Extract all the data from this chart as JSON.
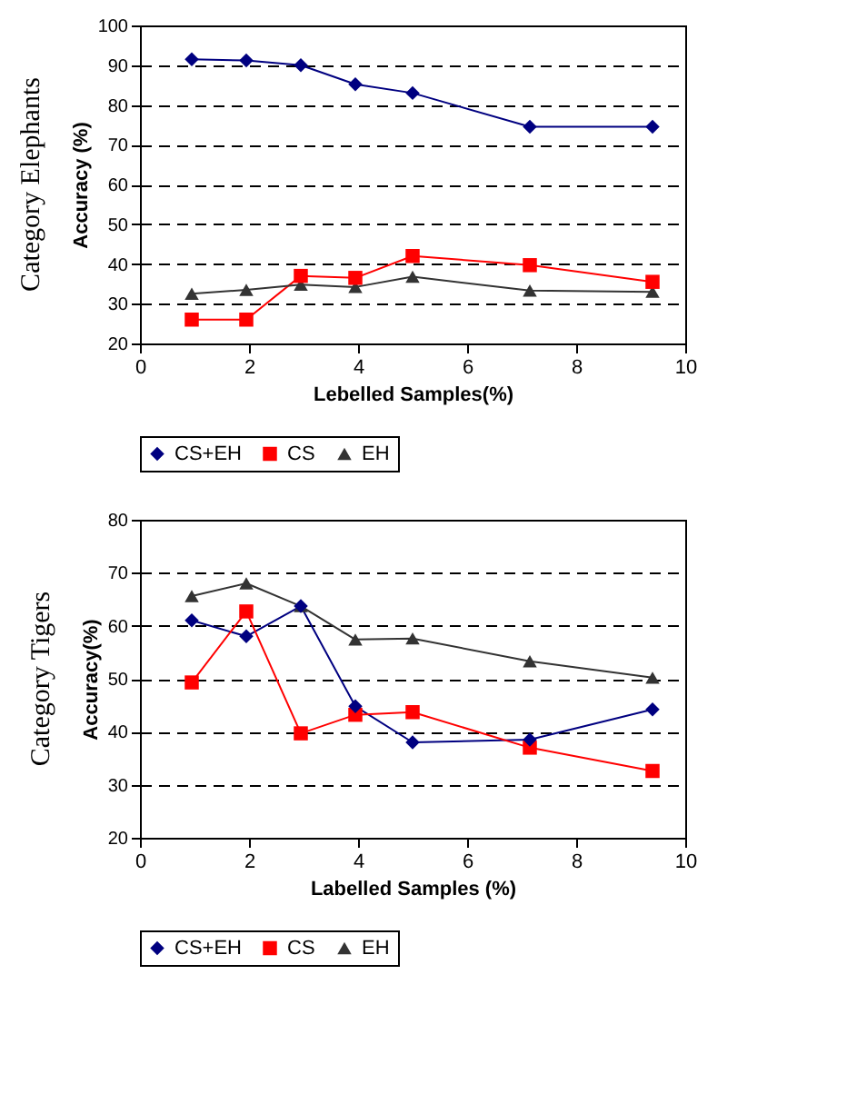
{
  "chart_data": [
    {
      "type": "line",
      "title": "Category Elephants",
      "xlabel": "Lebelled Samples(%)",
      "ylabel": "Accuracy (%)",
      "xlim": [
        0,
        10
      ],
      "xticks": [
        0,
        2,
        4,
        6,
        8,
        10
      ],
      "ylim": [
        20,
        100
      ],
      "yticks": [
        20,
        30,
        40,
        50,
        60,
        70,
        80,
        90,
        100
      ],
      "grid": "y",
      "legend": "bottom",
      "x": [
        0.95,
        1.95,
        2.95,
        3.95,
        5.0,
        7.15,
        9.4
      ],
      "series": [
        {
          "name": "CS+EH",
          "color": "#000080",
          "marker": "diamond",
          "values": [
            91.5,
            91.2,
            90,
            85.2,
            83,
            74.5,
            74.5
          ]
        },
        {
          "name": "CS",
          "color": "#ff0000",
          "marker": "square",
          "values": [
            26,
            26,
            37,
            36.5,
            42,
            39.7,
            35.5
          ]
        },
        {
          "name": "EH",
          "color": "#333333",
          "marker": "triangle",
          "values": [
            32.5,
            33.5,
            34.8,
            34.2,
            36.8,
            33.3,
            33
          ]
        }
      ]
    },
    {
      "type": "line",
      "title": "Category Tigers",
      "xlabel": "Labelled Samples (%)",
      "ylabel": "Accuracy(%)",
      "xlim": [
        0,
        10
      ],
      "xticks": [
        0,
        2,
        4,
        6,
        8,
        10
      ],
      "ylim": [
        20,
        80
      ],
      "yticks": [
        20,
        30,
        40,
        50,
        60,
        70,
        80
      ],
      "grid": "y",
      "legend": "bottom",
      "x": [
        0.95,
        1.95,
        2.95,
        3.95,
        5.0,
        7.15,
        9.4
      ],
      "series": [
        {
          "name": "CS+EH",
          "color": "#000080",
          "marker": "diamond",
          "values": [
            61,
            58,
            63.7,
            44.8,
            38,
            38.5,
            44.2
          ]
        },
        {
          "name": "CS",
          "color": "#ff0000",
          "marker": "square",
          "values": [
            49.3,
            62.7,
            39.7,
            43.2,
            43.7,
            37,
            32.6
          ]
        },
        {
          "name": "EH",
          "color": "#333333",
          "marker": "triangle",
          "values": [
            65.6,
            68,
            63.7,
            57.4,
            57.6,
            53.3,
            50.2
          ]
        }
      ]
    }
  ]
}
